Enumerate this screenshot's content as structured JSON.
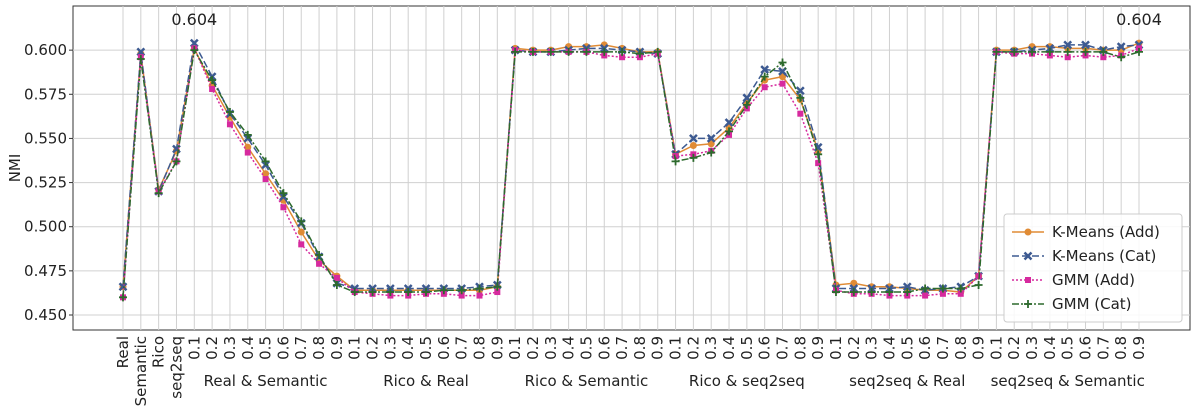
{
  "chart_data": {
    "type": "line",
    "y_label": "NMI",
    "categories": [
      "Real",
      "Semantic",
      "Rico",
      "seq2seq",
      "0.1",
      "0.2",
      "0.3",
      "0.4",
      "0.5",
      "0.6",
      "0.7",
      "0.8",
      "0.9",
      "0.1",
      "0.2",
      "0.3",
      "0.4",
      "0.5",
      "0.6",
      "0.7",
      "0.8",
      "0.9",
      "0.1",
      "0.2",
      "0.3",
      "0.4",
      "0.5",
      "0.6",
      "0.7",
      "0.8",
      "0.9",
      "0.1",
      "0.2",
      "0.3",
      "0.4",
      "0.5",
      "0.6",
      "0.7",
      "0.8",
      "0.9",
      "0.1",
      "0.2",
      "0.3",
      "0.4",
      "0.5",
      "0.6",
      "0.7",
      "0.8",
      "0.9",
      "0.1",
      "0.2",
      "0.3",
      "0.4",
      "0.5",
      "0.6",
      "0.7",
      "0.8",
      "0.9"
    ],
    "groups": [
      "Real & Semantic",
      "Rico & Real",
      "Rico & Semantic",
      "Rico & seq2seq",
      "seq2seq & Real",
      "seq2seq & Semantic"
    ],
    "series": [
      {
        "name": "K-Means (Add)",
        "color": "#e08b35",
        "marker": "circle",
        "dash": "solid",
        "values": [
          0.466,
          0.598,
          0.521,
          0.543,
          0.601,
          0.58,
          0.562,
          0.545,
          0.53,
          0.515,
          0.497,
          0.481,
          0.472,
          0.464,
          0.464,
          0.464,
          0.464,
          0.464,
          0.464,
          0.464,
          0.464,
          0.466,
          0.601,
          0.6,
          0.6,
          0.602,
          0.602,
          0.603,
          0.601,
          0.599,
          0.599,
          0.541,
          0.546,
          0.547,
          0.556,
          0.57,
          0.583,
          0.585,
          0.572,
          0.543,
          0.467,
          0.468,
          0.466,
          0.466,
          0.465,
          0.464,
          0.464,
          0.463,
          0.472,
          0.6,
          0.6,
          0.602,
          0.602,
          0.601,
          0.601,
          0.6,
          0.6,
          0.604
        ]
      },
      {
        "name": "K-Means (Cat)",
        "color": "#3d5a91",
        "marker": "x",
        "dash": "dashed",
        "values": [
          0.466,
          0.599,
          0.52,
          0.544,
          0.604,
          0.585,
          0.564,
          0.55,
          0.535,
          0.517,
          0.502,
          0.483,
          0.468,
          0.465,
          0.465,
          0.465,
          0.465,
          0.465,
          0.465,
          0.465,
          0.466,
          0.467,
          0.6,
          0.599,
          0.599,
          0.6,
          0.601,
          0.601,
          0.6,
          0.599,
          0.598,
          0.541,
          0.55,
          0.55,
          0.559,
          0.573,
          0.589,
          0.588,
          0.577,
          0.545,
          0.465,
          0.465,
          0.465,
          0.465,
          0.466,
          0.464,
          0.465,
          0.466,
          0.472,
          0.599,
          0.599,
          0.6,
          0.601,
          0.603,
          0.603,
          0.6,
          0.602,
          0.603
        ]
      },
      {
        "name": "GMM (Add)",
        "color": "#d62a9e",
        "marker": "square",
        "dash": "dotted",
        "values": [
          0.46,
          0.596,
          0.52,
          0.537,
          0.601,
          0.578,
          0.558,
          0.542,
          0.527,
          0.511,
          0.49,
          0.479,
          0.471,
          0.463,
          0.462,
          0.461,
          0.461,
          0.462,
          0.462,
          0.461,
          0.461,
          0.463,
          0.6,
          0.599,
          0.599,
          0.599,
          0.599,
          0.597,
          0.596,
          0.596,
          0.598,
          0.54,
          0.541,
          0.543,
          0.552,
          0.567,
          0.579,
          0.581,
          0.564,
          0.536,
          0.464,
          0.462,
          0.462,
          0.461,
          0.461,
          0.461,
          0.462,
          0.462,
          0.472,
          0.599,
          0.598,
          0.598,
          0.597,
          0.596,
          0.597,
          0.596,
          0.597,
          0.601
        ]
      },
      {
        "name": "GMM (Cat)",
        "color": "#2d6a2d",
        "marker": "plus",
        "dash": "dashdot",
        "values": [
          0.46,
          0.595,
          0.519,
          0.537,
          0.6,
          0.583,
          0.565,
          0.552,
          0.537,
          0.519,
          0.503,
          0.484,
          0.467,
          0.463,
          0.463,
          0.463,
          0.463,
          0.463,
          0.464,
          0.464,
          0.465,
          0.466,
          0.599,
          0.599,
          0.599,
          0.599,
          0.599,
          0.599,
          0.599,
          0.598,
          0.599,
          0.537,
          0.539,
          0.542,
          0.554,
          0.569,
          0.585,
          0.593,
          0.573,
          0.541,
          0.463,
          0.463,
          0.463,
          0.463,
          0.463,
          0.465,
          0.465,
          0.465,
          0.467,
          0.599,
          0.599,
          0.599,
          0.599,
          0.599,
          0.599,
          0.599,
          0.596,
          0.599
        ]
      }
    ],
    "annotations": [
      {
        "label": "0.604",
        "value": 0.604,
        "at": 4
      },
      {
        "label": "0.604",
        "value": 0.604,
        "at": 57
      }
    ],
    "ylim": [
      0.4415,
      0.625
    ],
    "yticks": [
      {
        "value": 0.45,
        "label": "0.450"
      },
      0.475,
      {
        "value": 0.5,
        "label": "0.500"
      },
      0.525,
      {
        "value": 0.55,
        "label": "0.550"
      },
      0.575,
      {
        "value": 0.6,
        "label": "0.600"
      }
    ],
    "grid": true,
    "legend": "lower right"
  }
}
